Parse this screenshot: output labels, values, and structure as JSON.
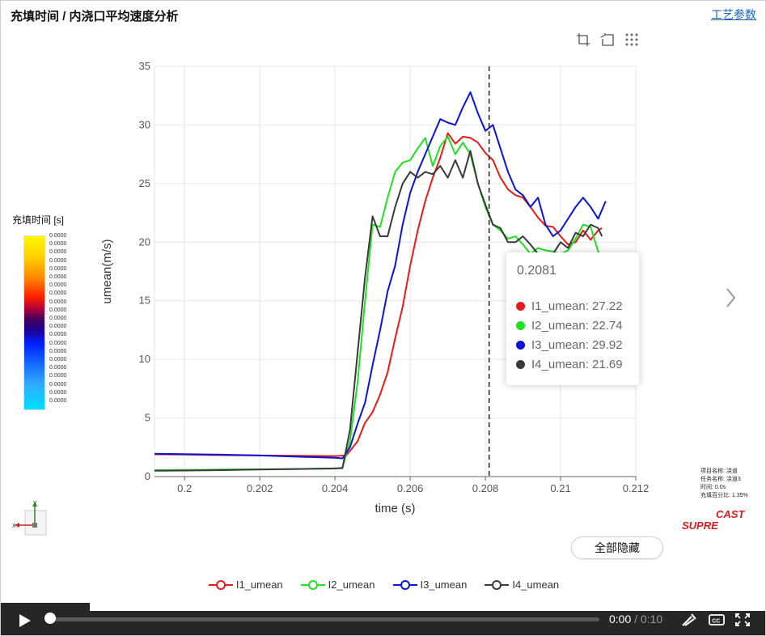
{
  "header": {
    "title": "充填时间 / 内浇口平均速度分析",
    "params_link": "工艺参数"
  },
  "colorbar": {
    "title": "充填时间 [s]",
    "labels": [
      "0.0000",
      "0.0000",
      "0.0000",
      "0.0000",
      "0.0000",
      "0.0000",
      "0.0000",
      "0.0000",
      "0.0000",
      "0.0000",
      "0.0000",
      "0.0000",
      "0.0000",
      "0.0000",
      "0.0000",
      "0.0000",
      "0.0000",
      "0.0000",
      "0.0000",
      "0.0000",
      "0.0000"
    ]
  },
  "axis_widget": {
    "y": "Y",
    "x": "X"
  },
  "info": {
    "project": "项目名称: 浇道",
    "task": "任务名称: 浇道3",
    "time": "时间: 0.0s",
    "fill": "充填百分比: 1.35%"
  },
  "logo": {
    "top": "CAST",
    "bottom": "SUPRE"
  },
  "buttons": {
    "hide_all": "全部隐藏"
  },
  "video": {
    "current": "0:00",
    "separator": " / ",
    "duration": "0:10",
    "progress": 0
  },
  "tooltip": {
    "title": "0.2081",
    "rows": [
      {
        "label": "I1_umean: 27.22",
        "color": "#e51c1c"
      },
      {
        "label": "I2_umean: 22.74",
        "color": "#22e022"
      },
      {
        "label": "I3_umean: 29.92",
        "color": "#0a14d4"
      },
      {
        "label": "I4_umean: 21.69",
        "color": "#3a3a3a"
      }
    ]
  },
  "chart_data": {
    "type": "line",
    "xlabel": "time (s)",
    "ylabel": "umean(m/s)",
    "xlim": [
      0.1992,
      0.212
    ],
    "ylim": [
      0,
      35
    ],
    "xticks": [
      0.2,
      0.202,
      0.204,
      0.206,
      0.208,
      0.21,
      0.212
    ],
    "xtick_labels": [
      "0.2",
      "0.202",
      "0.204",
      "0.206",
      "0.208",
      "0.21",
      "0.212"
    ],
    "yticks": [
      0,
      5,
      10,
      15,
      20,
      25,
      30,
      35
    ],
    "ytick_labels": [
      "0",
      "5",
      "10",
      "15",
      "20",
      "25",
      "30",
      "35"
    ],
    "grid": true,
    "legend_position": "bottom",
    "cursor_x": 0.2081,
    "series": [
      {
        "name": "I1_umean",
        "color": "#e51c1c",
        "points": [
          [
            0.1992,
            1.9
          ],
          [
            0.2,
            1.88
          ],
          [
            0.201,
            1.83
          ],
          [
            0.202,
            1.8
          ],
          [
            0.203,
            1.78
          ],
          [
            0.204,
            1.75
          ],
          [
            0.2043,
            1.8
          ],
          [
            0.2046,
            3.0
          ],
          [
            0.2048,
            4.6
          ],
          [
            0.205,
            5.5
          ],
          [
            0.2052,
            7.0
          ],
          [
            0.2054,
            8.9
          ],
          [
            0.2056,
            11.8
          ],
          [
            0.2058,
            14.5
          ],
          [
            0.206,
            18.0
          ],
          [
            0.2062,
            21.0
          ],
          [
            0.2064,
            23.5
          ],
          [
            0.2066,
            25.5
          ],
          [
            0.2068,
            27.2
          ],
          [
            0.207,
            29.3
          ],
          [
            0.2072,
            28.4
          ],
          [
            0.2074,
            29.0
          ],
          [
            0.2076,
            28.9
          ],
          [
            0.2078,
            28.5
          ],
          [
            0.208,
            27.6
          ],
          [
            0.2082,
            27.0
          ],
          [
            0.2084,
            25.5
          ],
          [
            0.2086,
            24.5
          ],
          [
            0.2088,
            24.0
          ],
          [
            0.209,
            23.8
          ],
          [
            0.2092,
            23.0
          ],
          [
            0.2094,
            22.1
          ],
          [
            0.2096,
            21.4
          ],
          [
            0.2098,
            21.3
          ],
          [
            0.21,
            20.5
          ],
          [
            0.2102,
            19.8
          ],
          [
            0.2104,
            20.0
          ],
          [
            0.2106,
            21.0
          ],
          [
            0.2108,
            20.2
          ],
          [
            0.211,
            21.0
          ],
          [
            0.2111,
            21.2
          ]
        ]
      },
      {
        "name": "I2_umean",
        "color": "#22e022",
        "points": [
          [
            0.1992,
            0.55
          ],
          [
            0.2,
            0.57
          ],
          [
            0.201,
            0.6
          ],
          [
            0.202,
            0.62
          ],
          [
            0.203,
            0.65
          ],
          [
            0.204,
            0.68
          ],
          [
            0.2042,
            0.78
          ],
          [
            0.2044,
            3.0
          ],
          [
            0.2046,
            8.0
          ],
          [
            0.2048,
            15.0
          ],
          [
            0.205,
            21.5
          ],
          [
            0.2052,
            21.3
          ],
          [
            0.2054,
            23.8
          ],
          [
            0.2056,
            26.0
          ],
          [
            0.2058,
            26.8
          ],
          [
            0.206,
            27.0
          ],
          [
            0.2062,
            28.0
          ],
          [
            0.2064,
            28.9
          ],
          [
            0.2066,
            26.5
          ],
          [
            0.2068,
            28.2
          ],
          [
            0.207,
            29.0
          ],
          [
            0.2072,
            27.5
          ],
          [
            0.2074,
            28.5
          ],
          [
            0.2076,
            27.5
          ],
          [
            0.2078,
            25.0
          ],
          [
            0.208,
            23.0
          ],
          [
            0.2082,
            21.5
          ],
          [
            0.2084,
            21.0
          ],
          [
            0.2086,
            20.3
          ],
          [
            0.2088,
            20.5
          ],
          [
            0.209,
            19.8
          ],
          [
            0.2092,
            19.0
          ],
          [
            0.2094,
            19.5
          ],
          [
            0.2096,
            19.3
          ],
          [
            0.2098,
            19.2
          ],
          [
            0.21,
            19.0
          ],
          [
            0.2102,
            19.3
          ],
          [
            0.2104,
            20.3
          ],
          [
            0.2106,
            21.5
          ],
          [
            0.2108,
            21.3
          ],
          [
            0.211,
            19.2
          ],
          [
            0.2111,
            18.8
          ]
        ]
      },
      {
        "name": "I3_umean",
        "color": "#0a14d4",
        "points": [
          [
            0.1992,
            1.95
          ],
          [
            0.2,
            1.92
          ],
          [
            0.201,
            1.87
          ],
          [
            0.202,
            1.8
          ],
          [
            0.203,
            1.7
          ],
          [
            0.204,
            1.6
          ],
          [
            0.2042,
            1.55
          ],
          [
            0.2044,
            2.5
          ],
          [
            0.2046,
            4.5
          ],
          [
            0.2048,
            6.3
          ],
          [
            0.205,
            9.5
          ],
          [
            0.2052,
            12.5
          ],
          [
            0.2054,
            15.8
          ],
          [
            0.2056,
            18.0
          ],
          [
            0.2058,
            21.5
          ],
          [
            0.206,
            24.2
          ],
          [
            0.2062,
            26.0
          ],
          [
            0.2064,
            27.5
          ],
          [
            0.2066,
            29.0
          ],
          [
            0.2068,
            30.5
          ],
          [
            0.207,
            30.2
          ],
          [
            0.2072,
            30.0
          ],
          [
            0.2074,
            31.5
          ],
          [
            0.2076,
            32.8
          ],
          [
            0.2078,
            31.0
          ],
          [
            0.208,
            29.5
          ],
          [
            0.2082,
            30.0
          ],
          [
            0.2084,
            28.0
          ],
          [
            0.2086,
            26.0
          ],
          [
            0.2088,
            24.5
          ],
          [
            0.209,
            24.0
          ],
          [
            0.2092,
            23.0
          ],
          [
            0.2094,
            23.8
          ],
          [
            0.2096,
            21.5
          ],
          [
            0.2098,
            20.5
          ],
          [
            0.21,
            21.0
          ],
          [
            0.2102,
            22.0
          ],
          [
            0.2104,
            23.0
          ],
          [
            0.2106,
            23.8
          ],
          [
            0.2108,
            23.0
          ],
          [
            0.211,
            22.0
          ],
          [
            0.2112,
            23.5
          ]
        ]
      },
      {
        "name": "I4_umean",
        "color": "#3a3a3a",
        "points": [
          [
            0.1992,
            0.5
          ],
          [
            0.2,
            0.52
          ],
          [
            0.201,
            0.55
          ],
          [
            0.202,
            0.6
          ],
          [
            0.203,
            0.65
          ],
          [
            0.204,
            0.7
          ],
          [
            0.2042,
            0.72
          ],
          [
            0.2044,
            4.0
          ],
          [
            0.2046,
            10.5
          ],
          [
            0.2048,
            17.0
          ],
          [
            0.205,
            22.2
          ],
          [
            0.2052,
            20.5
          ],
          [
            0.2054,
            20.5
          ],
          [
            0.2056,
            23.0
          ],
          [
            0.2058,
            25.0
          ],
          [
            0.206,
            26.0
          ],
          [
            0.2062,
            25.5
          ],
          [
            0.2064,
            26.0
          ],
          [
            0.2066,
            25.8
          ],
          [
            0.2068,
            26.5
          ],
          [
            0.207,
            25.5
          ],
          [
            0.2072,
            27.0
          ],
          [
            0.2074,
            25.5
          ],
          [
            0.2076,
            27.8
          ],
          [
            0.2078,
            25.0
          ],
          [
            0.208,
            23.2
          ],
          [
            0.2082,
            21.5
          ],
          [
            0.2084,
            21.2
          ],
          [
            0.2086,
            20.0
          ],
          [
            0.2088,
            20.0
          ],
          [
            0.209,
            20.5
          ],
          [
            0.2092,
            19.8
          ],
          [
            0.2094,
            19.0
          ],
          [
            0.2096,
            18.8
          ],
          [
            0.2098,
            19.0
          ],
          [
            0.21,
            20.0
          ],
          [
            0.2102,
            19.5
          ],
          [
            0.2104,
            20.8
          ],
          [
            0.2106,
            20.5
          ],
          [
            0.2108,
            21.5
          ],
          [
            0.211,
            21.2
          ],
          [
            0.2111,
            20.5
          ]
        ]
      }
    ]
  }
}
